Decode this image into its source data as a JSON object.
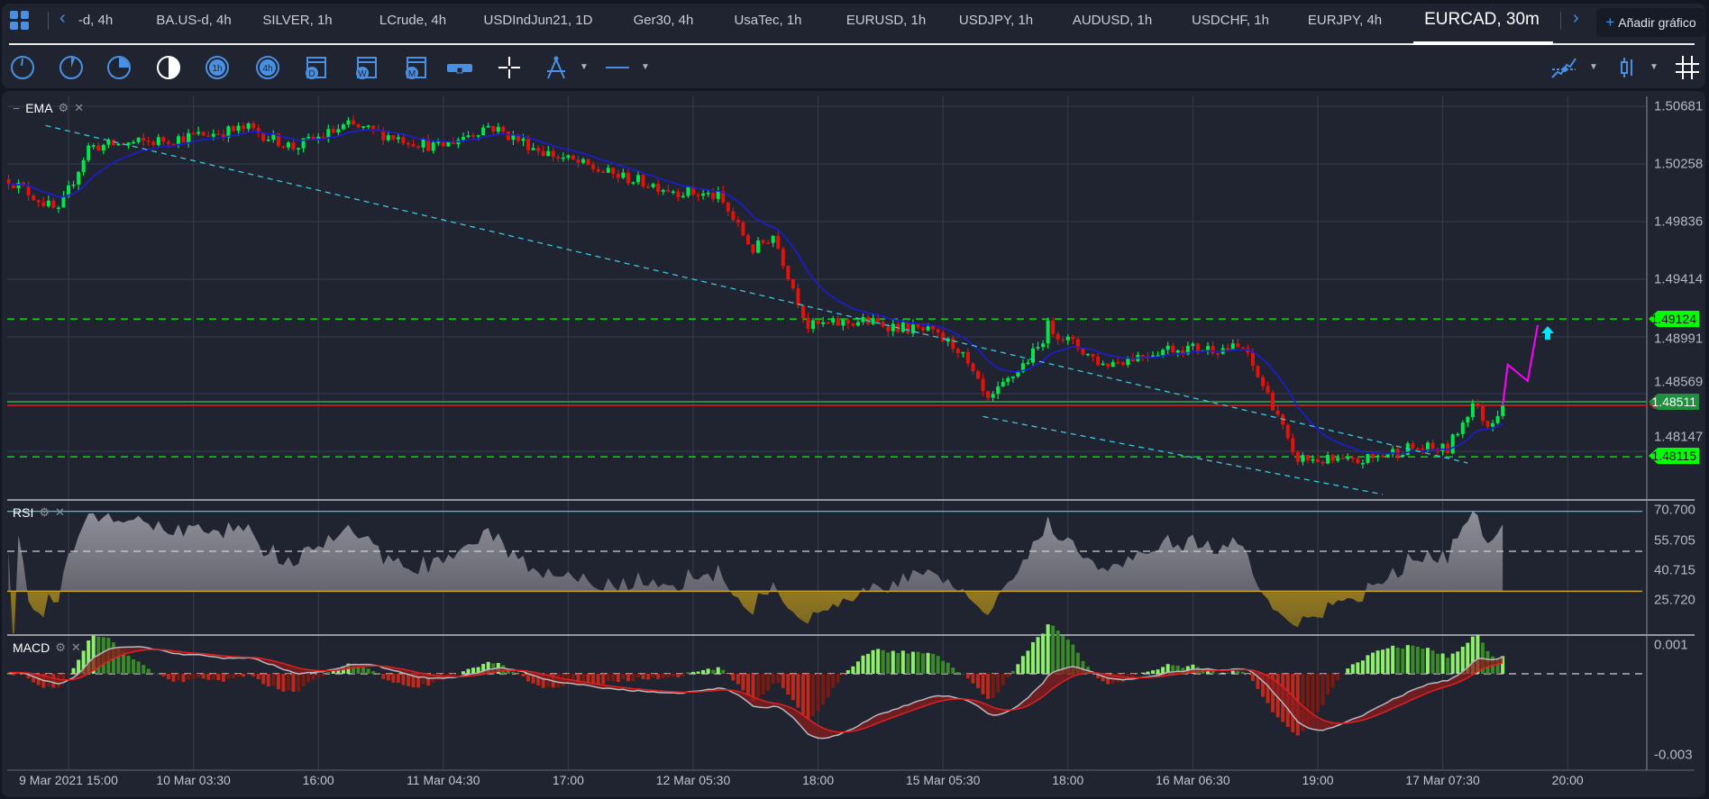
{
  "tabs": [
    {
      "label": "-d, 4h"
    },
    {
      "label": "BA.US-d, 4h"
    },
    {
      "label": "SILVER, 1h"
    },
    {
      "label": "LCrude, 4h"
    },
    {
      "label": "USDIndJun21, 1D"
    },
    {
      "label": "Ger30, 4h"
    },
    {
      "label": "UsaTec, 1h"
    },
    {
      "label": "EURUSD, 1h"
    },
    {
      "label": "USDJPY, 1h"
    },
    {
      "label": "AUDUSD, 1h"
    },
    {
      "label": "USDCHF, 1h"
    },
    {
      "label": "EURJPY, 4h"
    },
    {
      "label": "EURCAD, 30m",
      "active": true
    }
  ],
  "add_chart": {
    "plus": "+",
    "label": "Añadir gráfico"
  },
  "toolbar": {
    "left_icons": [
      "tick-chart-icon",
      "1m-clock-icon",
      "5m-clock-icon",
      "30m-clock-icon",
      "1h-clock-icon",
      "4h-clock-icon",
      "daily-calendar-icon",
      "weekly-calendar-icon",
      "monthly-calendar-icon",
      "range-icon",
      "crosshair-icon",
      "compass-drawing-icon",
      "line-style-icon"
    ],
    "timeframe_badges": {
      "h1": "1h",
      "h4": "4h",
      "d": "D",
      "w": "W",
      "m": "M"
    },
    "right_icons": [
      "indicators-icon",
      "candle-type-icon",
      "grid-icon"
    ]
  },
  "colors": {
    "up": "#00e64d",
    "down": "#e3120b",
    "ema": "#1c1cd6",
    "trendline": "#3ec7d8",
    "projection": "#ff00ff",
    "level_green": "#00ff00",
    "rsi_upper": "#3ec7d8",
    "rsi_lower": "#c9a227",
    "accent": "#4a90e2"
  },
  "legends": {
    "price": "EMA",
    "rsi": "RSI",
    "macd": "MACD"
  },
  "price_axis": [
    "1.50681",
    "1.50258",
    "1.49836",
    "1.49414",
    "1.48991",
    "1.48569",
    "1.48147"
  ],
  "price_tags": [
    {
      "value": "1.49124",
      "style": "bright"
    },
    {
      "value": "1.48511",
      "style": "current"
    },
    {
      "value": "1.48115",
      "style": "bright"
    }
  ],
  "rsi_axis": [
    "70.700",
    "55.705",
    "40.715",
    "25.720"
  ],
  "macd_axis": [
    "0.001",
    "-0.003"
  ],
  "time_axis": [
    "9 Mar 2021 15:00",
    "10 Mar 03:30",
    "16:00",
    "11 Mar 04:30",
    "17:00",
    "12 Mar 05:30",
    "18:00",
    "15 Mar 05:30",
    "18:00",
    "16 Mar 06:30",
    "19:00",
    "17 Mar 07:30",
    "20:00"
  ],
  "chart_data": {
    "type": "candlestick",
    "symbol": "EURCAD, 30m",
    "price_range": [
      1.4795,
      1.5075
    ],
    "close_path": [
      {
        "bar": -12,
        "close": 1.50147
      },
      {
        "bar": -2,
        "close": 1.49903
      },
      {
        "bar": 4,
        "close": 1.50384
      },
      {
        "bar": 17,
        "close": 1.50424
      },
      {
        "bar": 36,
        "close": 1.5052
      },
      {
        "bar": 45,
        "close": 1.5038
      },
      {
        "bar": 56,
        "close": 1.5054
      },
      {
        "bar": 74,
        "close": 1.5038
      },
      {
        "bar": 84,
        "close": 1.5054
      },
      {
        "bar": 95,
        "close": 1.5035
      },
      {
        "bar": 108,
        "close": 1.5019
      },
      {
        "bar": 122,
        "close": 1.5006
      },
      {
        "bar": 130,
        "close": 1.5002
      },
      {
        "bar": 137,
        "close": 1.4963
      },
      {
        "bar": 141,
        "close": 1.4974
      },
      {
        "bar": 148,
        "close": 1.4907
      },
      {
        "bar": 159,
        "close": 1.4911
      },
      {
        "bar": 172,
        "close": 1.4903
      },
      {
        "bar": 178,
        "close": 1.4891
      },
      {
        "bar": 184,
        "close": 1.4851
      },
      {
        "bar": 194,
        "close": 1.4891
      },
      {
        "bar": 196,
        "close": 1.4907
      },
      {
        "bar": 207,
        "close": 1.4879
      },
      {
        "bar": 220,
        "close": 1.4891
      },
      {
        "bar": 235,
        "close": 1.4891
      },
      {
        "bar": 242,
        "close": 1.4843
      },
      {
        "bar": 245,
        "close": 1.4811
      },
      {
        "bar": 257,
        "close": 1.4807
      },
      {
        "bar": 268,
        "close": 1.4818
      },
      {
        "bar": 276,
        "close": 1.4817
      },
      {
        "bar": 281,
        "close": 1.4851
      },
      {
        "bar": 284,
        "close": 1.4835
      },
      {
        "bar": 287,
        "close": 1.4849
      }
    ],
    "indicators": [
      "EMA",
      "RSI(14)",
      "MACD(12,26,9)"
    ],
    "rsi_levels": [
      70,
      50,
      30
    ],
    "levels": [
      1.49124,
      1.48511,
      1.48115
    ],
    "trendlines": [
      {
        "from": {
          "bar": -4.6,
          "price": 1.5054
        },
        "to": {
          "bar": 280,
          "price": 1.4807
        }
      },
      {
        "from": {
          "bar": 183,
          "price": 1.4841
        },
        "to": {
          "bar": 263,
          "price": 1.4784
        }
      }
    ],
    "projection": [
      {
        "bar": 287,
        "price": 1.4849
      },
      {
        "bar": 288,
        "price": 1.4879
      },
      {
        "bar": 292,
        "price": 1.4867
      },
      {
        "bar": 294,
        "price": 1.4908
      }
    ],
    "signal_arrow": {
      "bar": 296,
      "direction": "up"
    }
  }
}
